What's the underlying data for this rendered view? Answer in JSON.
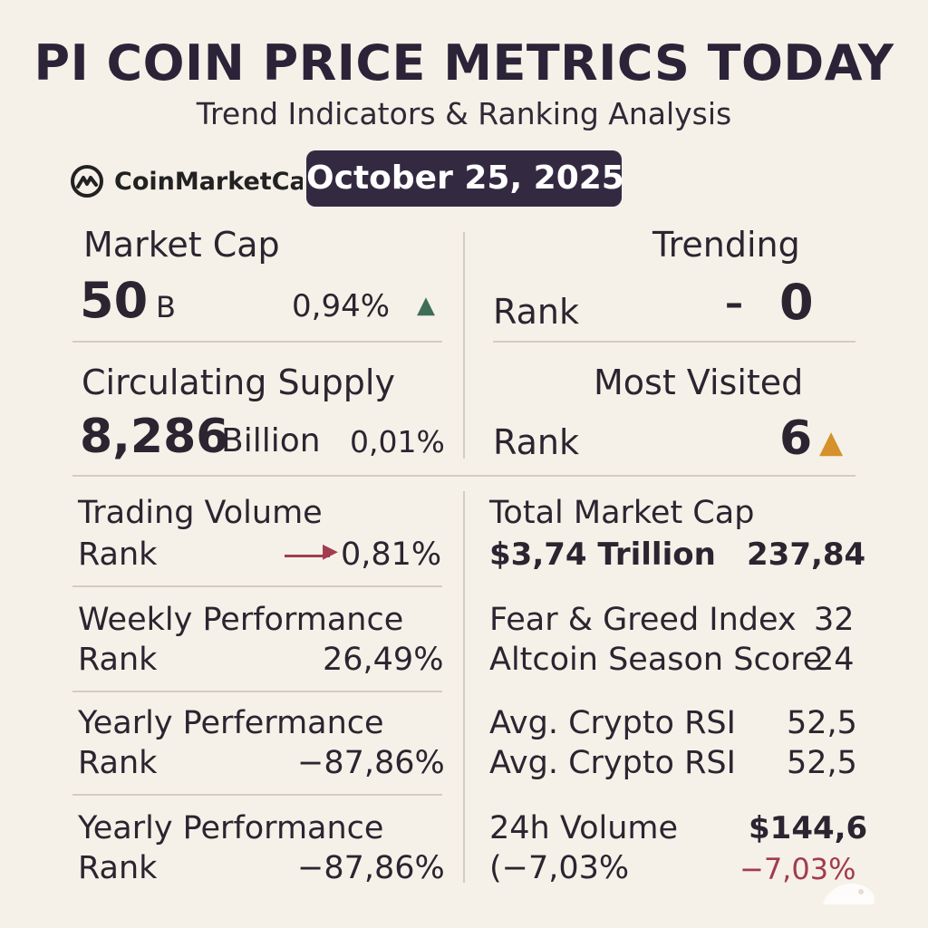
{
  "header": {
    "title": "PI COIN PRICE METRICS TODAY",
    "subtitle": "Trend Indicators & Ranking Analysis",
    "brand": "CoinMarketCap",
    "date": "October 25, 2025"
  },
  "market_cap": {
    "label": "Market Cap",
    "value": "50",
    "unit": "B",
    "change": "0,94%",
    "arrow": "▲"
  },
  "trending": {
    "label": "Trending",
    "rank_label": "Rank",
    "dash": "–",
    "value": "0"
  },
  "circulating_supply": {
    "label": "Circulating Supply",
    "value": "8,286",
    "unit": "Billion",
    "change": "0,01%"
  },
  "most_visited": {
    "label": "Most Visited",
    "rank_label": "Rank",
    "value": "6",
    "arrow": "▲"
  },
  "trading_volume": {
    "label": "Trading Volume",
    "rank_label": "Rank",
    "value": "0,81%"
  },
  "weekly_performance": {
    "label": "Weekly Performance",
    "rank_label": "Rank",
    "value": "26,49%"
  },
  "yearly_performance_1": {
    "label": "Yearly Perfermance",
    "rank_label": "Rank",
    "value": "−87,86%"
  },
  "yearly_performance_2": {
    "label": "Yearly Performance",
    "rank_label": "Rank",
    "value": "−87,86%"
  },
  "total_market_cap": {
    "label": "Total Market Cap",
    "value": "$3,74 Trillion",
    "number": "237,84"
  },
  "fear_greed": {
    "label": "Fear & Greed Index",
    "value": "32"
  },
  "altcoin_season": {
    "label": "Altcoin Season Score",
    "value": "24"
  },
  "rsi_1": {
    "label": "Avg. Crypto RSI",
    "value": "52,5"
  },
  "rsi_2": {
    "label": "Avg. Crypto RSI",
    "value": "52,5"
  },
  "volume_24h": {
    "label": "24h Volume",
    "value": "$144,6",
    "sub": "(−7,03%",
    "change": "−7,03%"
  },
  "colors": {
    "background": "#f6f1e8",
    "pill": "#332a42",
    "green": "#3e6f56",
    "orange": "#d4912c",
    "red": "#a23c4e"
  }
}
